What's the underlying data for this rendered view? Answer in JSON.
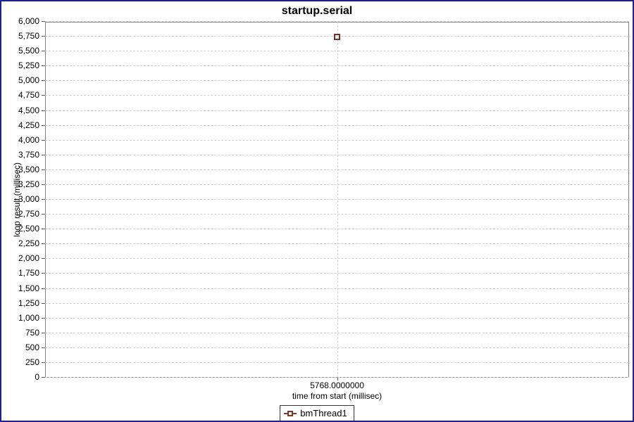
{
  "window": {
    "background": "#ffffff",
    "border_color": "#1f1f96"
  },
  "chart_data": {
    "type": "scatter",
    "title": "startup.serial",
    "xlabel": "time from start (millisec)",
    "ylabel": "loop result (millisec)",
    "ylim": [
      0,
      6000
    ],
    "y_tick_step": 250,
    "y_tick_labels": [
      "0",
      "250",
      "500",
      "750",
      "1,000",
      "1,250",
      "1,500",
      "1,750",
      "2,000",
      "2,250",
      "2,500",
      "2,750",
      "3,000",
      "3,250",
      "3,500",
      "3,750",
      "4,000",
      "4,250",
      "4,500",
      "4,750",
      "5,000",
      "5,250",
      "5,500",
      "5,750",
      "6,000"
    ],
    "x_axis": {
      "tick_value": "5768.0000000",
      "tick_frac": 0.5
    },
    "grid": true,
    "gridline_color": "#cdcdcd",
    "plot_border_color": "#808080",
    "tick_mark_color": "#555555",
    "legend_position": "bottom",
    "series": [
      {
        "name": "bmThread1",
        "marker": "square",
        "marker_fill": "#ddeedd",
        "marker_border": "#6e3a33",
        "line_color": "#8b3434",
        "points": [
          {
            "x": 5768,
            "y": 5750
          }
        ]
      }
    ]
  }
}
